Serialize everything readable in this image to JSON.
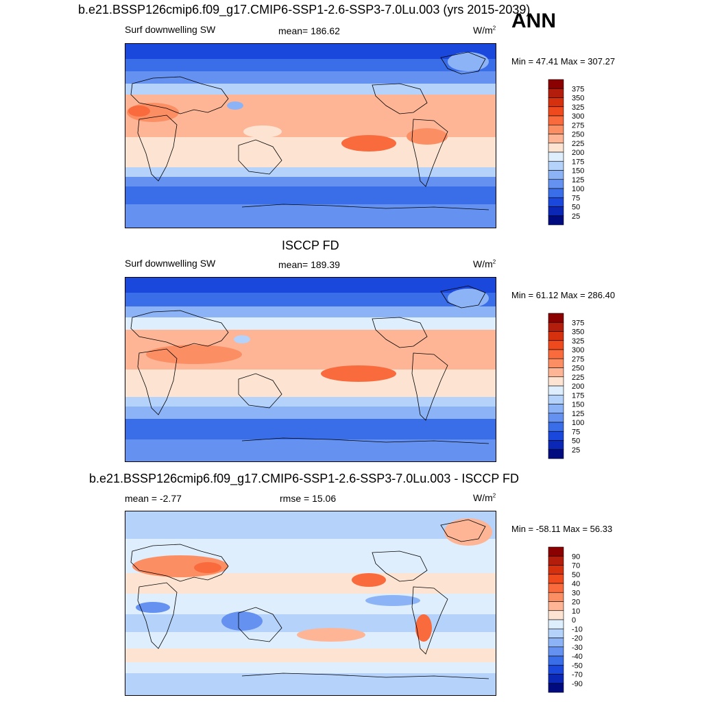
{
  "header": {
    "title": "b.e21.BSSP126cmip6.f09_g17.CMIP6-SSP1-2.6-SSP3-7.0Lu.003 (yrs 2015-2039)",
    "season": "ANN"
  },
  "panels": [
    {
      "title": "",
      "variable": "Surf downwelling SW",
      "stat": "mean= 186.62",
      "units": "W/m",
      "units_sup": "2",
      "minmax": "Min =  47.41 Max = 307.27",
      "colorbar": "abs"
    },
    {
      "title": "ISCCP FD",
      "variable": "Surf downwelling SW",
      "stat": "mean= 189.39",
      "units": "W/m",
      "units_sup": "2",
      "minmax": "Min =  61.12 Max = 286.40",
      "colorbar": "abs"
    },
    {
      "title": "b.e21.BSSP126cmip6.f09_g17.CMIP6-SSP1-2.6-SSP3-7.0Lu.003 - ISCCP FD",
      "variable": "mean =  -2.77",
      "stat": "rmse =  15.06",
      "units": "W/m",
      "units_sup": "2",
      "minmax": "Min = -58.11 Max =  56.33",
      "colorbar": "diff"
    }
  ],
  "colorbars": {
    "abs": {
      "labels": [
        "375",
        "350",
        "325",
        "300",
        "275",
        "250",
        "225",
        "200",
        "175",
        "150",
        "125",
        "100",
        "75",
        "50",
        "25"
      ],
      "colors": [
        "#8b0000",
        "#b21d0c",
        "#d6310f",
        "#ef4a1d",
        "#f96a3d",
        "#fc8e64",
        "#fdb596",
        "#fde4d2",
        "#dfeefc",
        "#b5d2fa",
        "#8cb3f6",
        "#6592f1",
        "#3a6ee9",
        "#1a48dc",
        "#0a28b5",
        "#000b80"
      ]
    },
    "diff": {
      "labels": [
        "90",
        "70",
        "50",
        "40",
        "30",
        "20",
        "10",
        "0",
        "-10",
        "-20",
        "-30",
        "-40",
        "-50",
        "-70",
        "-90"
      ],
      "colors": [
        "#8b0000",
        "#b21d0c",
        "#d6310f",
        "#ef4a1d",
        "#f96a3d",
        "#fc8e64",
        "#fdb596",
        "#fde4d2",
        "#dfeefc",
        "#b5d2fa",
        "#8cb3f6",
        "#6592f1",
        "#3a6ee9",
        "#1a48dc",
        "#0a28b5",
        "#000b80"
      ]
    }
  }
}
